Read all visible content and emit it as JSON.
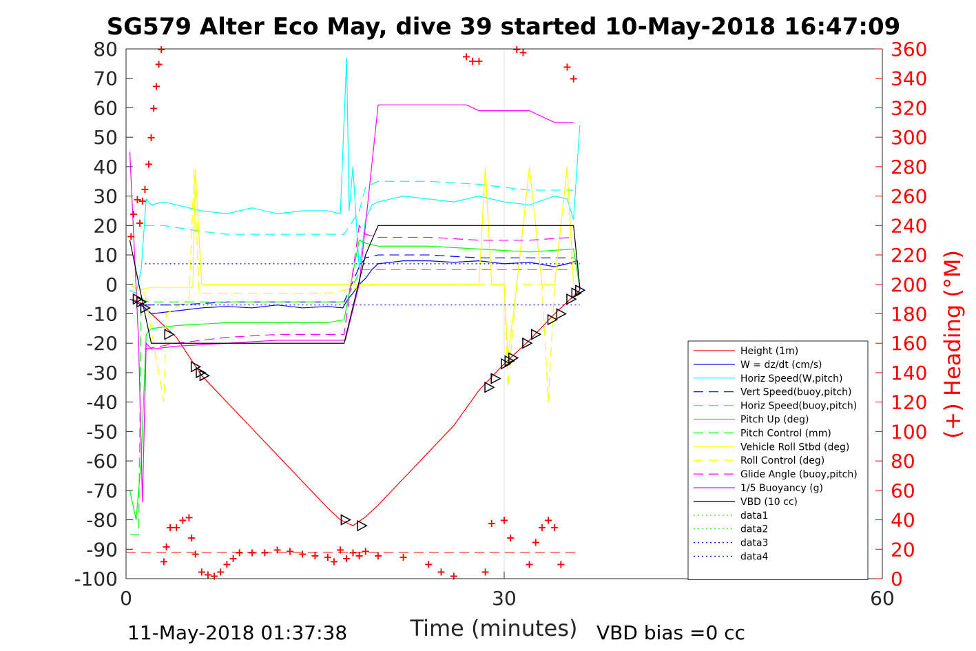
{
  "title": "SG579 Alter Eco May, dive 39 started 10-May-2018 16:47:09",
  "footer": {
    "left": "11-May-2018 01:37:38",
    "right": "VBD bias =0 cc"
  },
  "chart_data": {
    "type": "line",
    "title": "SG579 Alter Eco May, dive 39 started 10-May-2018 16:47:09",
    "xlabel": "Time (minutes)",
    "ylabel": "",
    "ylabel_right": "(+) Heading (°M)",
    "xlim": [
      0,
      60
    ],
    "ylim": [
      -100,
      80
    ],
    "ylim_right": [
      0,
      360
    ],
    "x_ticks": [
      0,
      30,
      60
    ],
    "y_ticks": [
      -100,
      -90,
      -80,
      -70,
      -60,
      -50,
      -40,
      -30,
      -20,
      -10,
      0,
      10,
      20,
      30,
      40,
      50,
      60,
      70,
      80
    ],
    "y_ticks_right": [
      0,
      20,
      40,
      60,
      80,
      100,
      120,
      140,
      160,
      180,
      200,
      220,
      240,
      260,
      280,
      300,
      320,
      340,
      360
    ],
    "grid_x": [
      30
    ],
    "legend_position": "lower-right",
    "series": [
      {
        "name": "Height (1m)",
        "color": "#ff0000",
        "style": "solid",
        "x": [
          0.5,
          1,
          2,
          3,
          4,
          6,
          8,
          10,
          12,
          14,
          16,
          17,
          18,
          19,
          20,
          22,
          24,
          26,
          28,
          30,
          32,
          34,
          35,
          36
        ],
        "y": [
          -5,
          -6,
          -10,
          -14,
          -18,
          -31,
          -40,
          -49,
          -58,
          -67,
          -76,
          -80,
          -82,
          -79,
          -75,
          -66,
          -57,
          -48,
          -36,
          -27,
          -19,
          -10,
          -6,
          -2
        ]
      },
      {
        "name": "W = dz/dt (cm/s)",
        "color": "#0000ff",
        "style": "solid",
        "x": [
          0.3,
          0.8,
          1.5,
          2,
          4,
          6,
          8,
          10,
          12,
          14,
          16,
          17.2,
          17.6,
          18,
          18.5,
          19,
          19.5,
          20,
          22,
          24,
          26,
          28,
          30,
          32,
          34,
          35,
          35.8,
          36
        ],
        "y": [
          -5,
          -6,
          -8,
          -10,
          -9,
          -8,
          -7.5,
          -8,
          -7,
          -8,
          -7.5,
          -8,
          -5,
          -3,
          0,
          2,
          5,
          7,
          8,
          8,
          7.5,
          8,
          7,
          7.5,
          6,
          7,
          8,
          -2
        ]
      },
      {
        "name": "Horiz Speed(W,pitch)",
        "color": "#00ffff",
        "style": "solid",
        "x": [
          0.3,
          0.8,
          1.2,
          1.6,
          2,
          3,
          4,
          6,
          8,
          10,
          12,
          14,
          16,
          17,
          17.5,
          17.7,
          18,
          18.5,
          19,
          19.5,
          20,
          22,
          24,
          26,
          28,
          30,
          32,
          34,
          35,
          35.5,
          36
        ],
        "y": [
          -2,
          -3,
          5,
          29,
          27,
          28,
          27,
          25,
          24,
          26,
          24,
          25,
          25,
          24,
          77,
          25,
          40,
          5,
          22,
          27,
          28,
          30,
          29,
          28,
          30,
          28,
          27,
          30,
          29,
          22,
          54
        ]
      },
      {
        "name": "Vert Speed(buoy,pitch)",
        "color": "#0000ff",
        "style": "dash",
        "x": [
          1.5,
          4,
          8,
          12,
          16,
          17.3,
          18.5,
          19,
          20,
          24,
          28,
          32,
          35.5
        ],
        "y": [
          -7,
          -7,
          -6,
          -6,
          -6,
          -6,
          6,
          9,
          10,
          10,
          9,
          9,
          9
        ]
      },
      {
        "name": "Horiz Speed(buoy,pitch)",
        "color": "#00ffff",
        "style": "dash",
        "x": [
          1.5,
          3,
          6,
          8,
          12,
          16,
          17.3,
          18.5,
          19,
          20,
          24,
          28,
          32,
          35.5
        ],
        "y": [
          20,
          20,
          18,
          17,
          17,
          17,
          17,
          25,
          33,
          35,
          35,
          34,
          32,
          32
        ]
      },
      {
        "name": "Pitch Up (deg)",
        "color": "#00ff00",
        "style": "solid",
        "x": [
          0.3,
          0.8,
          1.2,
          1.6,
          2,
          4,
          8,
          12,
          16,
          17.3,
          18.5,
          19,
          20,
          24,
          28,
          32,
          35.5,
          36
        ],
        "y": [
          -70,
          -80,
          -60,
          -17,
          -15,
          -14,
          -13,
          -13,
          -13,
          -12,
          15,
          14,
          13,
          13,
          12,
          11,
          12,
          -1
        ]
      },
      {
        "name": "Pitch Control (mm)",
        "color": "#00ff00",
        "style": "dash",
        "x": [
          0.3,
          1,
          1.2,
          1.8,
          4,
          8,
          12,
          16,
          17.4,
          18.6,
          20,
          24,
          28,
          32,
          35.5
        ],
        "y": [
          -85,
          -85,
          -5,
          -6,
          -6,
          -6,
          -6,
          -6,
          -6,
          5,
          5,
          5,
          5,
          5,
          5
        ]
      },
      {
        "name": "Vehicle Roll Stbd (deg)",
        "color": "#ffff00",
        "style": "solid",
        "x": [
          0.3,
          1,
          2,
          3,
          5.3,
          5.5,
          6,
          8,
          12,
          16,
          17.3,
          18,
          20,
          24,
          28,
          28.5,
          29,
          30,
          30.3,
          31,
          32,
          33,
          34,
          35,
          35.5
        ],
        "y": [
          0,
          -2,
          -1,
          -1,
          -1,
          39,
          0,
          0,
          0,
          0,
          0,
          0,
          0,
          0,
          0,
          40,
          0,
          0,
          -25,
          0,
          40,
          0,
          0,
          40,
          0
        ]
      },
      {
        "name": "Roll Control (deg)",
        "color": "#ffff00",
        "style": "dash",
        "x": [
          0.3,
          1.5,
          3,
          3.2,
          5,
          5.4,
          5.8,
          8,
          12,
          16,
          20,
          24,
          28,
          30,
          30.3,
          31,
          33,
          33.5,
          34,
          35,
          35.5
        ],
        "y": [
          0,
          -3,
          -40,
          -10,
          -5,
          39,
          -3,
          -3,
          -3,
          -3,
          0,
          0,
          0,
          0,
          -35,
          0,
          0,
          -40,
          0,
          40,
          0
        ]
      },
      {
        "name": "Glide Angle (buoy,pitch)",
        "color": "#ff00ff",
        "style": "dash",
        "x": [
          1.5,
          4,
          8,
          12,
          16,
          17.3,
          18.5,
          19,
          20,
          24,
          28,
          32,
          35.5
        ],
        "y": [
          -22,
          -20,
          -18,
          -17,
          -17,
          -17,
          20,
          17,
          16,
          16,
          15,
          15,
          16
        ]
      },
      {
        "name": "1/5 Buoyancy (g)",
        "color": "#ff00ff",
        "style": "solid",
        "x": [
          0.3,
          1,
          1.3,
          1.6,
          2,
          4,
          8,
          12,
          16,
          17.4,
          18.5,
          20,
          24,
          27,
          28,
          32,
          34,
          35.5
        ],
        "y": [
          45,
          -20,
          -74,
          -20,
          -22,
          -21,
          -20,
          -19,
          -19,
          -19,
          0,
          61,
          61,
          61,
          59,
          59,
          55,
          55
        ]
      },
      {
        "name": "VBD (10 cc)",
        "color": "#000000",
        "style": "solid",
        "x": [
          0.3,
          1.5,
          2,
          4,
          8,
          12,
          17.3,
          19,
          20,
          24,
          28,
          32,
          35.5,
          36
        ],
        "y": [
          15,
          -10,
          -20,
          -20,
          -20,
          -20,
          -20,
          10,
          20,
          20,
          20,
          20,
          20,
          -1
        ]
      },
      {
        "name": "data1",
        "color": "#00ff00",
        "style": "dot",
        "x": [],
        "y": []
      },
      {
        "name": "data2",
        "color": "#00ff00",
        "style": "dot",
        "x": [],
        "y": []
      },
      {
        "name": "data3",
        "color": "#0000ff",
        "style": "dot",
        "x": [
          1.5,
          36
        ],
        "y": [
          7,
          7
        ]
      },
      {
        "name": "data4",
        "color": "#0000ff",
        "style": "dot",
        "x": [
          1.5,
          36
        ],
        "y": [
          -7,
          -7
        ]
      }
    ],
    "heading_series": {
      "axis": "right",
      "color": "#ff0000",
      "marker": "+",
      "x": [
        0.4,
        0.6,
        0.9,
        1.1,
        1.3,
        1.5,
        1.8,
        2,
        2.2,
        2.4,
        2.6,
        2.8,
        3,
        3.2,
        3.5,
        4,
        4.5,
        5,
        5.2,
        5.5,
        6,
        6.5,
        7,
        7.5,
        8,
        8.5,
        9,
        10,
        11,
        12,
        13,
        14,
        15,
        16,
        16.5,
        17,
        17.5,
        18,
        18.5,
        19,
        20,
        22,
        24,
        25,
        26,
        27,
        27.5,
        28,
        28.5,
        29,
        30,
        30.5,
        31,
        31.5,
        32,
        32.5,
        33,
        33.5,
        34,
        34.5,
        35,
        35.5
      ],
      "y": [
        233,
        248,
        258,
        242,
        257,
        265,
        282,
        300,
        320,
        335,
        350,
        360,
        12,
        22,
        35,
        35,
        40,
        42,
        28,
        17,
        5,
        3,
        2,
        5,
        10,
        14,
        18,
        18,
        18,
        20,
        19,
        17,
        16,
        15,
        12,
        20,
        14,
        18,
        16,
        19,
        16,
        15,
        10,
        5,
        2,
        355,
        352,
        352,
        5,
        38,
        40,
        28,
        360,
        358,
        10,
        25,
        35,
        40,
        35,
        10,
        348,
        340
      ]
    },
    "reference_lines": [
      {
        "axis": "left",
        "y": -91,
        "color": "#ff0000",
        "style": "dash"
      }
    ],
    "triangle_markers": {
      "color": "#000000",
      "x": [
        0.9,
        1.2,
        1.5,
        3.4,
        5.5,
        5.9,
        6.2,
        17.4,
        18.7,
        28.8,
        29.3,
        30.1,
        30.4,
        30.7,
        31.8,
        32.5,
        33.8,
        34.5,
        35.3,
        35.7,
        36.0
      ],
      "y": [
        -5,
        -6,
        -8,
        -17,
        -28,
        -30,
        -31,
        -80,
        -82,
        -35,
        -32,
        -27,
        -26,
        -25,
        -20,
        -17,
        -12,
        -10,
        -5,
        -3,
        -2
      ]
    }
  }
}
